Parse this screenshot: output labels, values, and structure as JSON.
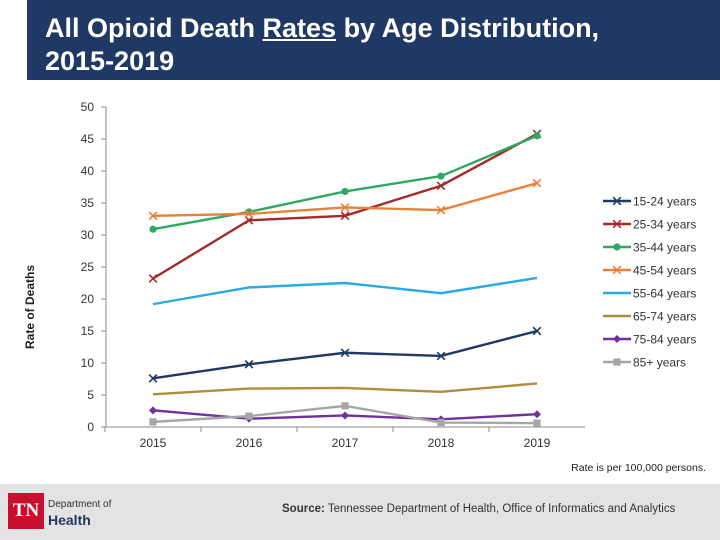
{
  "header": {
    "title_before": "All Opioid Death ",
    "title_underlined": "Rates",
    "title_after": " by Age Distribution,",
    "title_line2": "2015-2019"
  },
  "chart_data": {
    "type": "line",
    "title": "All Opioid Death Rates by Age Distribution, 2015-2019",
    "xlabel": "",
    "ylabel": "Rate of Deaths",
    "categories": [
      "2015",
      "2016",
      "2017",
      "2018",
      "2019"
    ],
    "ylim": [
      0,
      50
    ],
    "yticks": [
      0,
      5,
      10,
      15,
      20,
      25,
      30,
      35,
      40,
      45,
      50
    ],
    "legend_position": "right",
    "series": [
      {
        "name": "15-24 years",
        "color": "#1f3864",
        "marker": "x",
        "values": [
          7.6,
          9.8,
          11.6,
          11.1,
          15.0
        ]
      },
      {
        "name": "25-34 years",
        "color": "#a52a2a",
        "marker": "x",
        "values": [
          23.2,
          32.3,
          33.0,
          37.7,
          45.8
        ]
      },
      {
        "name": "35-44 years",
        "color": "#2ea862",
        "marker": "circle",
        "values": [
          30.9,
          33.6,
          36.8,
          39.2,
          45.5
        ]
      },
      {
        "name": "45-54 years",
        "color": "#e6823c",
        "marker": "x",
        "values": [
          33.0,
          33.3,
          34.3,
          33.9,
          38.1
        ]
      },
      {
        "name": "55-64 years",
        "color": "#29abe2",
        "marker": "none",
        "values": [
          19.2,
          21.8,
          22.5,
          20.9,
          23.3
        ]
      },
      {
        "name": "65-74 years",
        "color": "#b08d3c",
        "marker": "none",
        "values": [
          5.1,
          6.0,
          6.1,
          5.5,
          6.8
        ]
      },
      {
        "name": "75-84 years",
        "color": "#7030a0",
        "marker": "diamond",
        "values": [
          2.6,
          1.3,
          1.8,
          1.2,
          2.0
        ]
      },
      {
        "name": "85+ years",
        "color": "#a6a6a6",
        "marker": "square",
        "values": [
          0.8,
          1.7,
          3.3,
          0.7,
          0.6
        ]
      }
    ]
  },
  "notes": {
    "rate_note": "Rate is per 100,000 persons."
  },
  "footer": {
    "logo_mark": "TN",
    "logo_department": "Department of",
    "logo_health": "Health",
    "source_label": "Source:",
    "source_text": " Tennessee Department of Health, Office of Informatics and Analytics"
  }
}
